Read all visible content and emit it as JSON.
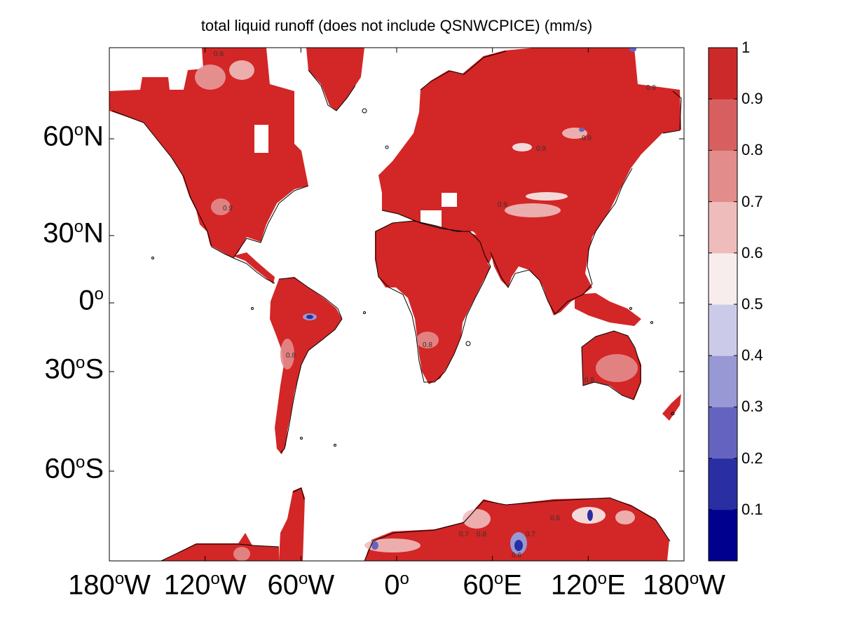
{
  "title": "total liquid runoff (does not include QSNWCPICE) (mm/s)",
  "lat_ticks": [
    {
      "deg": 60,
      "label_num": "60",
      "label_sup": "o",
      "label_dir": "N"
    },
    {
      "deg": 30,
      "label_num": "30",
      "label_sup": "o",
      "label_dir": "N"
    },
    {
      "deg": 0,
      "label_num": "0",
      "label_sup": "o",
      "label_dir": ""
    },
    {
      "deg": -30,
      "label_num": "30",
      "label_sup": "o",
      "label_dir": "S"
    },
    {
      "deg": -60,
      "label_num": "60",
      "label_sup": "o",
      "label_dir": "S"
    }
  ],
  "lon_ticks": [
    {
      "deg": -180,
      "label_num": "180",
      "label_sup": "o",
      "label_dir": "W"
    },
    {
      "deg": -120,
      "label_num": "120",
      "label_sup": "o",
      "label_dir": "W"
    },
    {
      "deg": -60,
      "label_num": "60",
      "label_sup": "o",
      "label_dir": "W"
    },
    {
      "deg": 0,
      "label_num": "0",
      "label_sup": "o",
      "label_dir": ""
    },
    {
      "deg": 60,
      "label_num": "60",
      "label_sup": "o",
      "label_dir": "E"
    },
    {
      "deg": 120,
      "label_num": "120",
      "label_sup": "o",
      "label_dir": "E"
    },
    {
      "deg": 180,
      "label_num": "180",
      "label_sup": "o",
      "label_dir": "W"
    }
  ],
  "colorbar": {
    "ticks": [
      "0.1",
      "0.2",
      "0.3",
      "0.4",
      "0.5",
      "0.6",
      "0.7",
      "0.8",
      "0.9",
      "1"
    ],
    "colors": [
      "#00008f",
      "#2a2ea3",
      "#6464c0",
      "#9898d4",
      "#cbcbe9",
      "#f8eded",
      "#efbcbc",
      "#e28c8c",
      "#d85f5f",
      "#cc2a2a"
    ]
  },
  "map": {
    "land_color": "#d32626",
    "coast_color": "#000000",
    "contour_labels": [
      "0.9",
      "0.8",
      "0.7",
      "0.6"
    ]
  }
}
